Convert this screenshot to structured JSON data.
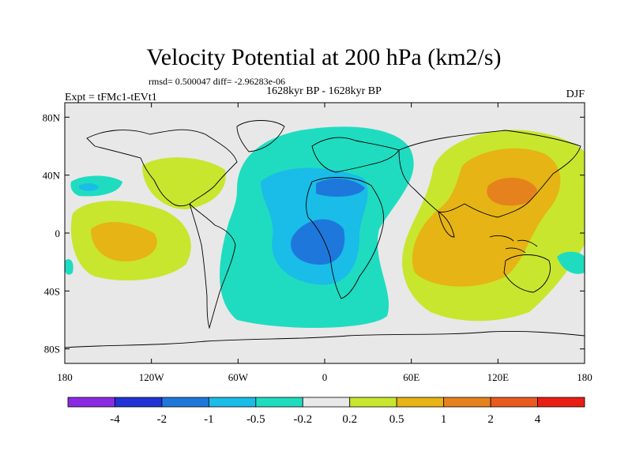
{
  "chart_data": {
    "type": "heatmap",
    "title": "Velocity Potential at 200 hPa (km2/s)",
    "stats_line": "rmsd= 0.500047 diff= -2.96283e-06",
    "subtitle": "1628kyr BP - 1628kyr BP",
    "left_label": "Expt = tFMc1-tEVt1",
    "right_label": "DJF",
    "x_ticks": [
      "180",
      "120W",
      "60W",
      "0",
      "60E",
      "120E",
      "180"
    ],
    "x_tick_values": [
      -180,
      -120,
      -60,
      0,
      60,
      120,
      180
    ],
    "y_ticks": [
      "80N",
      "40N",
      "0",
      "40S",
      "80S"
    ],
    "y_tick_values": [
      80,
      40,
      0,
      -40,
      -80
    ],
    "xlim": [
      -180,
      180
    ],
    "ylim": [
      -90,
      90
    ],
    "colorbar_labels": [
      "-4",
      "-2",
      "-1",
      "-0.5",
      "-0.2",
      "0.2",
      "0.5",
      "1",
      "2",
      "4"
    ],
    "colorbar_levels": [
      -4,
      -2,
      -1,
      -0.5,
      -0.2,
      0.2,
      0.5,
      1,
      2,
      4
    ],
    "colorbar_colors": [
      "#8a2be2",
      "#2133d6",
      "#1e78dc",
      "#19bde8",
      "#1fdcc0",
      "#e8e8e8",
      "#c8e62e",
      "#e6b414",
      "#e6821e",
      "#e85a1e",
      "#e81e14"
    ],
    "regions": [
      {
        "name": "atlantic-negative",
        "level": -0.2,
        "sign": "negative"
      },
      {
        "name": "atlantic-core",
        "level": -0.5,
        "sign": "negative"
      },
      {
        "name": "atlantic-center",
        "level": -1,
        "sign": "negative"
      },
      {
        "name": "pacific-positive",
        "level": 0.2,
        "sign": "positive"
      },
      {
        "name": "west-pacific-core",
        "level": 0.5,
        "sign": "positive"
      },
      {
        "name": "east-asia-max",
        "level": 1,
        "sign": "positive"
      },
      {
        "name": "east-pacific-positive",
        "level": 0.2,
        "sign": "positive"
      },
      {
        "name": "east-pacific-core",
        "level": 0.5,
        "sign": "positive"
      },
      {
        "name": "north-pacific-negative",
        "level": -0.2,
        "sign": "negative"
      }
    ]
  }
}
